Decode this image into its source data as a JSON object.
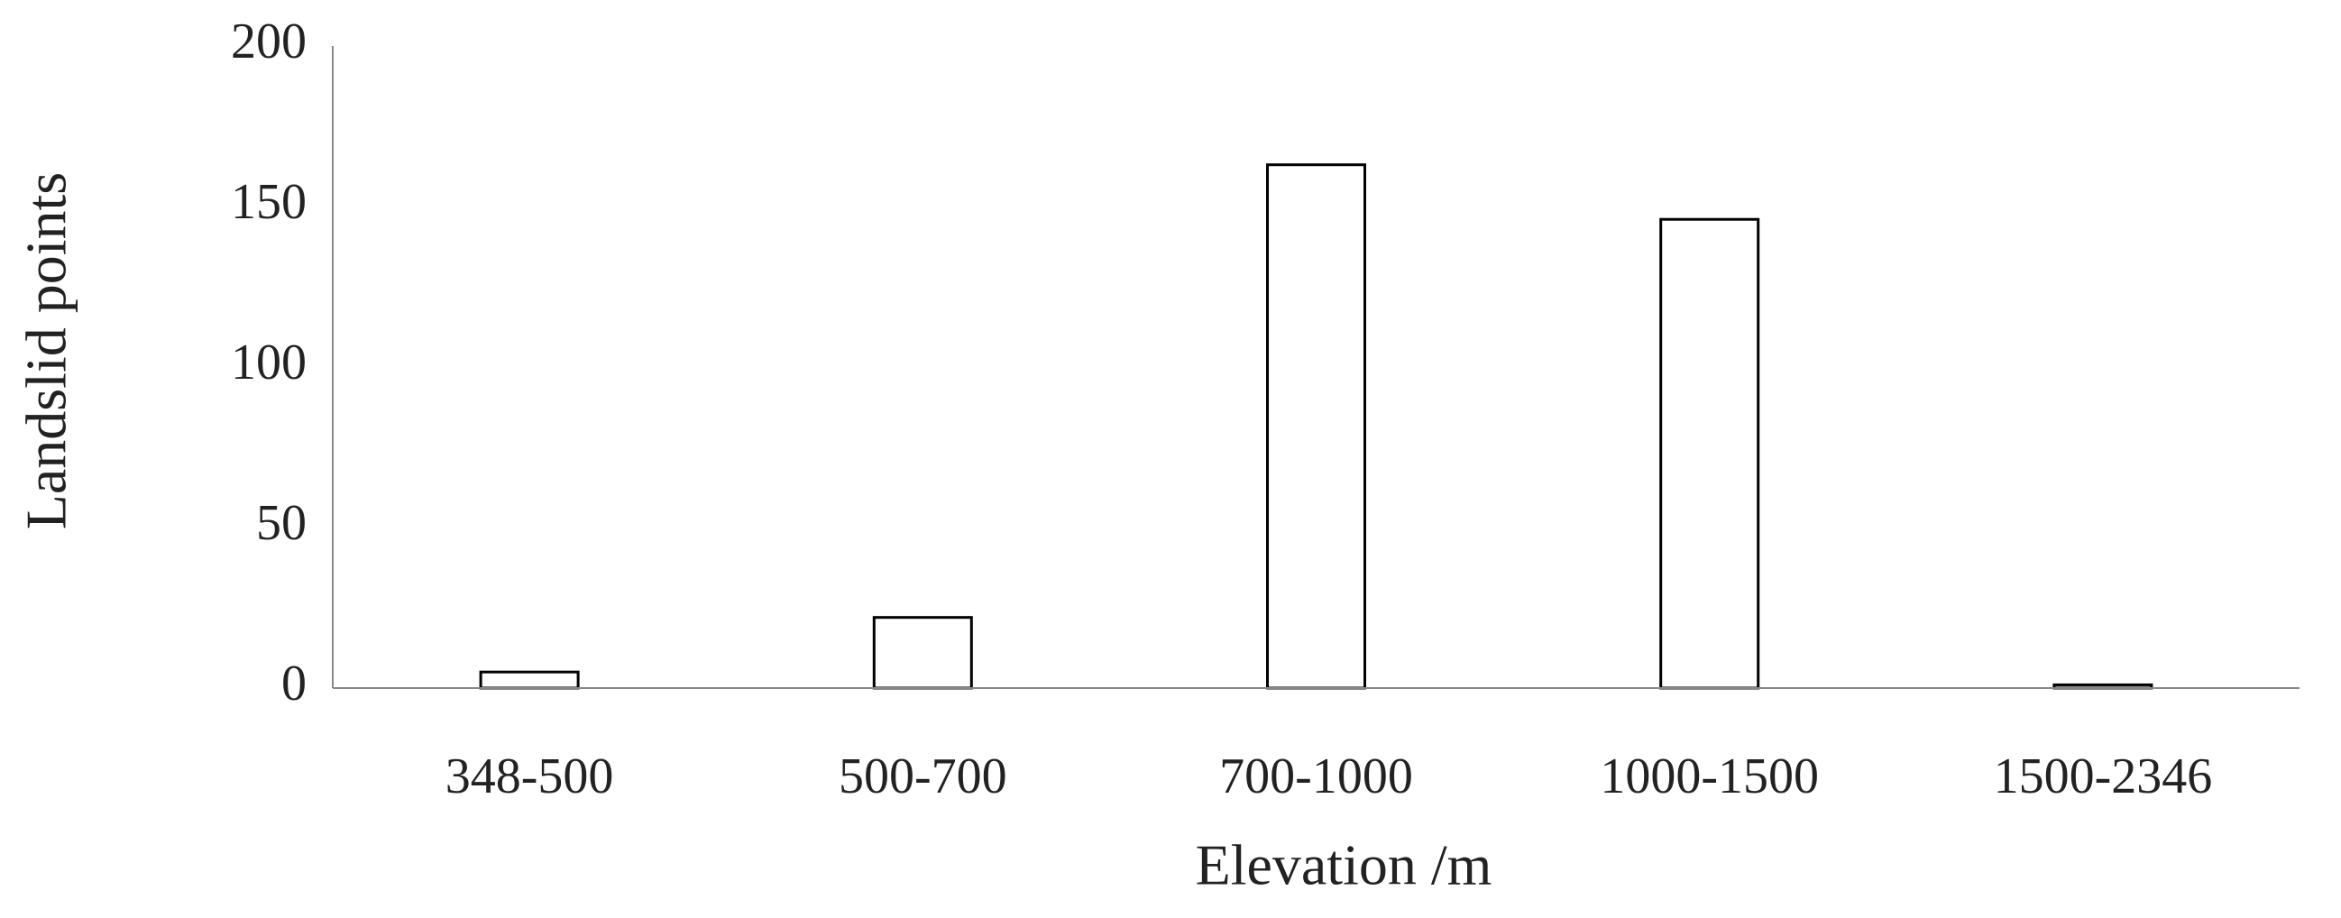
{
  "chart_data": {
    "type": "bar",
    "x_label": "Elevation /m",
    "y_label": "Landslid points",
    "categories": [
      "348-500",
      "500-700",
      "700-1000",
      "1000-1500",
      "1500-2346"
    ],
    "values": [
      5,
      22,
      163,
      146,
      1
    ],
    "color": "#ffffff",
    "ylim": [
      0,
      200
    ],
    "yticks": [
      0,
      50,
      100,
      150,
      200
    ],
    "grid": false
  }
}
